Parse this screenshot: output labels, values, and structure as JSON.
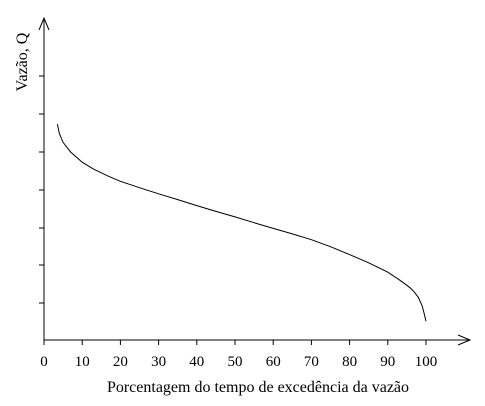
{
  "chart_data": {
    "type": "line",
    "title": "",
    "xlabel": "Porcentagem do tempo de excedência da vazão",
    "ylabel": "Vazão, Q",
    "xlim": [
      0,
      110
    ],
    "xticks": [
      0,
      10,
      20,
      30,
      40,
      50,
      60,
      70,
      80,
      90,
      100
    ],
    "xtick_labels": [
      "0",
      "10",
      "20",
      "30",
      "40",
      "50",
      "60",
      "70",
      "80",
      "90",
      "100"
    ],
    "ylim": [
      0,
      10
    ],
    "ytick_labels": [],
    "grid": false,
    "series": [
      {
        "x": [
          3.5,
          4,
          5,
          7,
          10,
          13,
          17,
          20,
          25,
          30,
          35,
          40,
          45,
          50,
          55,
          60,
          65,
          70,
          75,
          80,
          85,
          90,
          93,
          95,
          96,
          97,
          98,
          99,
          99.5,
          100
        ],
        "y": [
          7.1,
          6.8,
          6.5,
          6.18,
          5.85,
          5.62,
          5.38,
          5.22,
          5.01,
          4.81,
          4.62,
          4.42,
          4.23,
          4.05,
          3.86,
          3.67,
          3.49,
          3.3,
          3.07,
          2.81,
          2.54,
          2.23,
          1.98,
          1.8,
          1.7,
          1.57,
          1.4,
          1.12,
          0.88,
          0.62
        ]
      }
    ]
  }
}
